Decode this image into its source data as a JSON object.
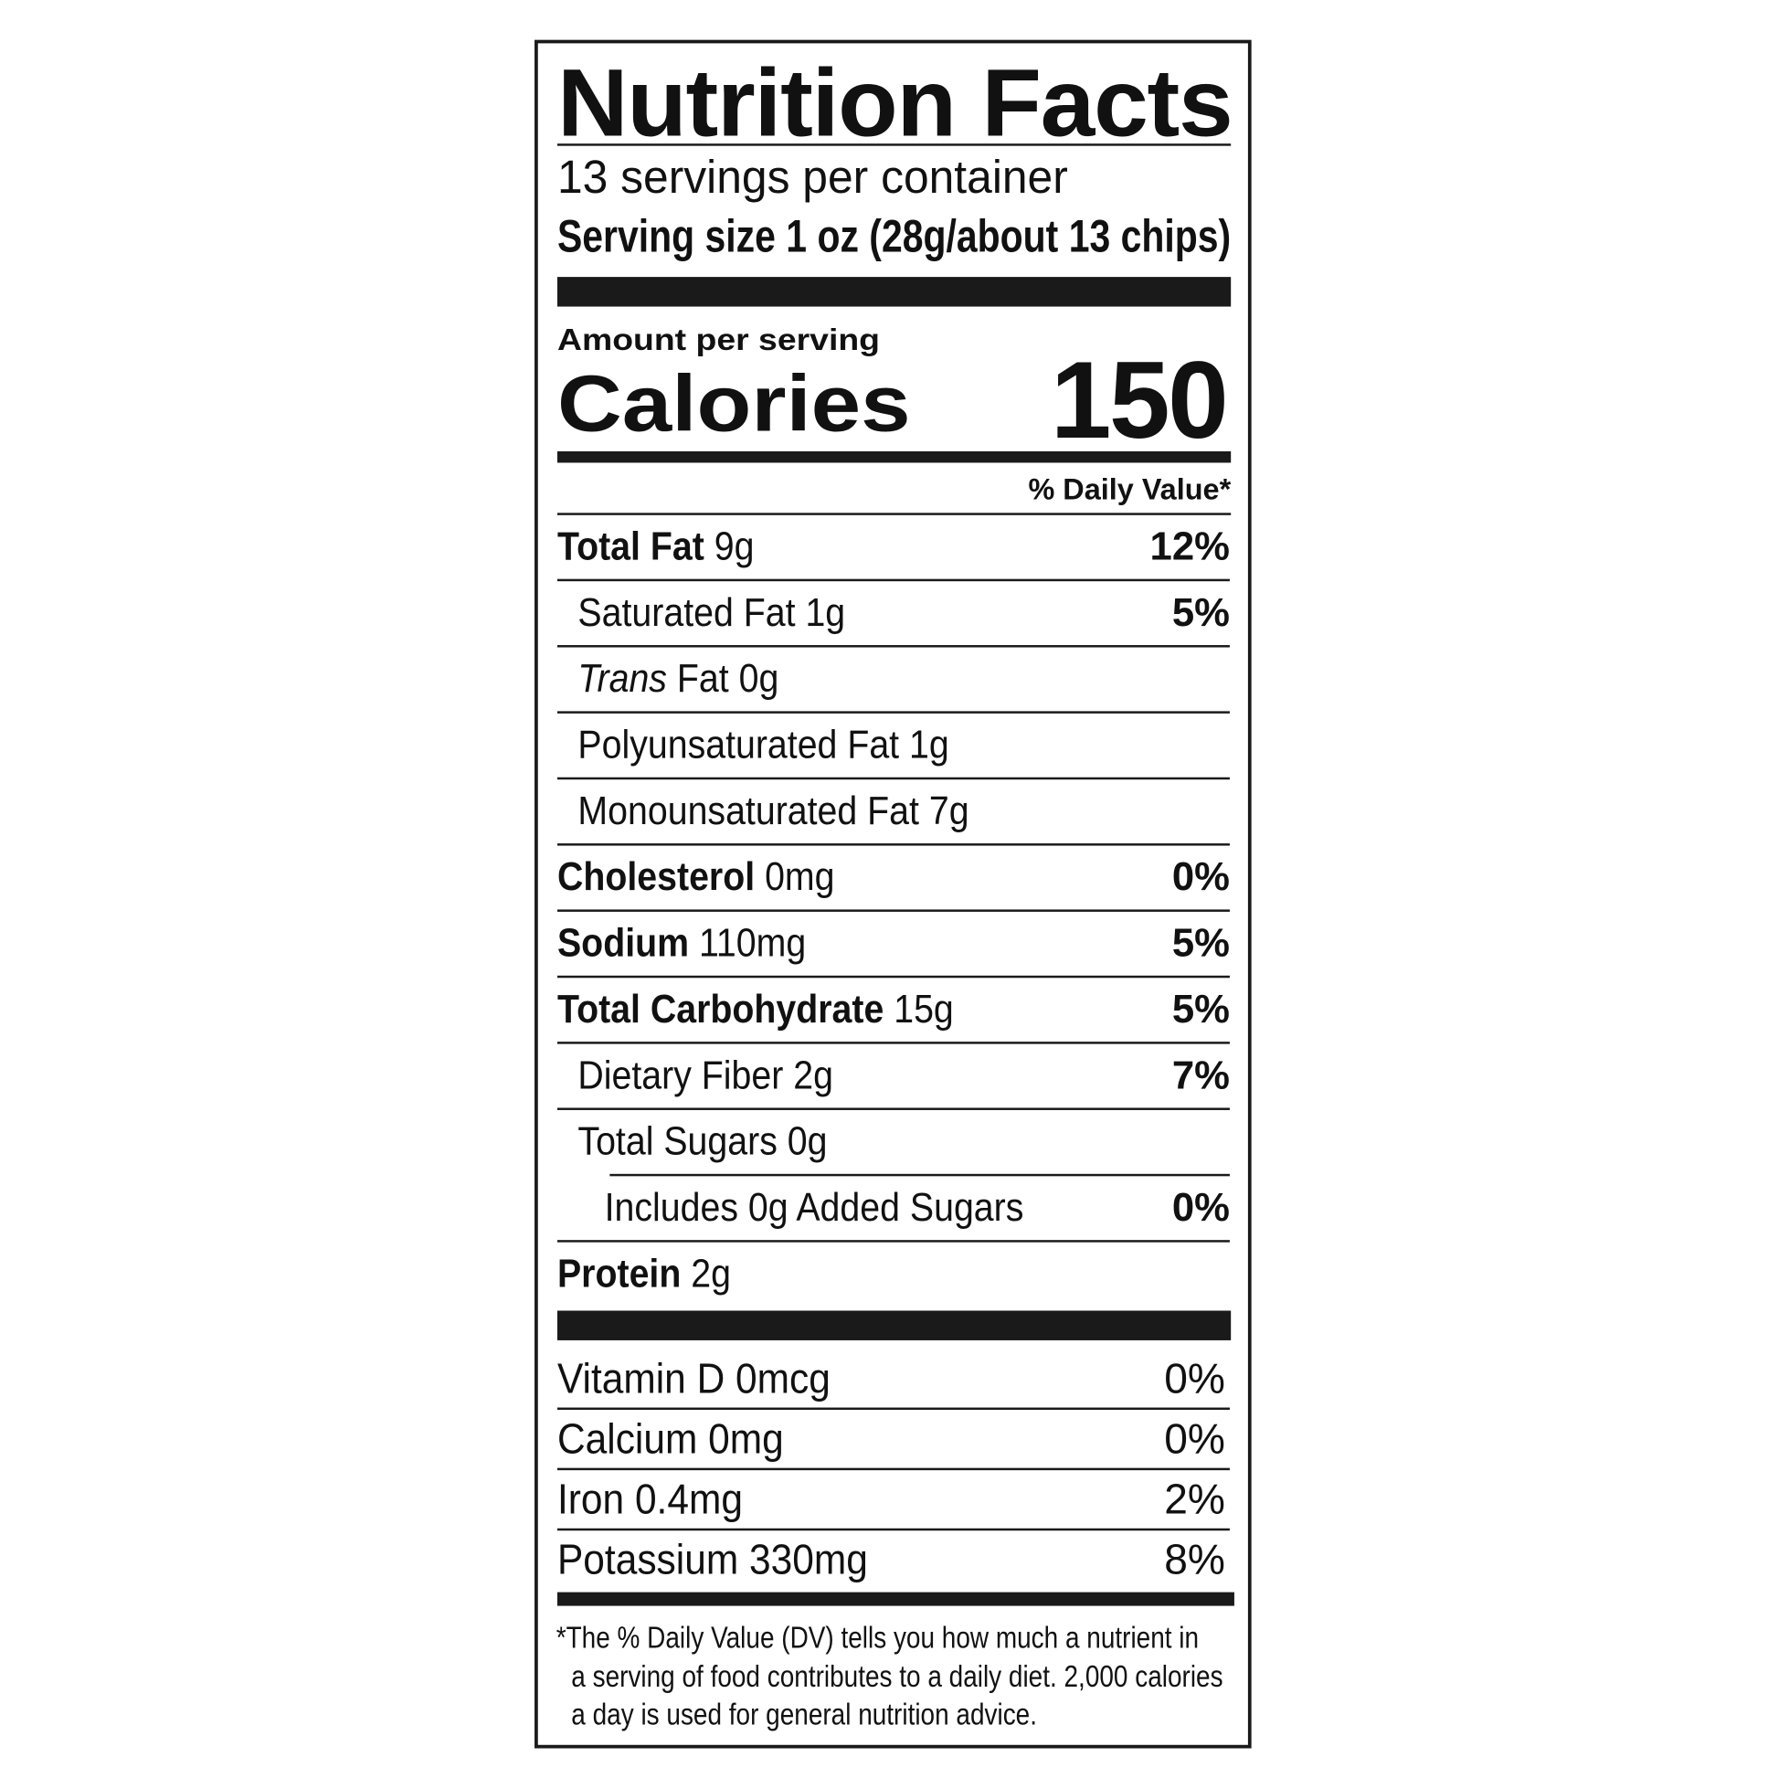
{
  "title": "Nutrition Facts",
  "servings_per_container": "13 servings per container",
  "serving_size": "Serving size 1 oz (28g/about 13 chips)",
  "amount_per_serving": "Amount per serving",
  "calories_label": "Calories",
  "calories_value": "150",
  "daily_value_header": "% Daily Value*",
  "nutrients": [
    {
      "name": "Total Fat",
      "amount": "9g",
      "dv": "12%",
      "bold": true
    },
    {
      "name": "Saturated Fat",
      "amount": "1g",
      "dv": "5%"
    },
    {
      "name_italic": "Trans",
      "name": "Fat",
      "amount": "0g",
      "dv": ""
    },
    {
      "name": "Polyunsaturated Fat",
      "amount": "1g",
      "dv": ""
    },
    {
      "name": "Monounsaturated Fat",
      "amount": "7g",
      "dv": ""
    },
    {
      "name": "Cholesterol",
      "amount": "0mg",
      "dv": "0%",
      "bold": true
    },
    {
      "name": "Sodium",
      "amount": "110mg",
      "dv": "5%",
      "bold": true
    },
    {
      "name": "Total Carbohydrate",
      "amount": "15g",
      "dv": "5%",
      "bold": true
    },
    {
      "name": "Dietary Fiber",
      "amount": "2g",
      "dv": "7%"
    },
    {
      "name": "Total Sugars",
      "amount": "0g",
      "dv": ""
    },
    {
      "name": "Includes 0g Added Sugars",
      "amount": "",
      "dv": "0%"
    },
    {
      "name": "Protein",
      "amount": "2g",
      "dv": "",
      "bold": true
    }
  ],
  "vitamins": [
    {
      "name": "Vitamin D 0mcg",
      "dv": "0%"
    },
    {
      "name": "Calcium 0mg",
      "dv": "0%"
    },
    {
      "name": "Iron 0.4mg",
      "dv": "2%"
    },
    {
      "name": "Potassium 330mg",
      "dv": "8%"
    }
  ],
  "footnote": [
    "*The % Daily Value (DV) tells you how much a nutrient in",
    "a serving of food contributes to a daily diet. 2,000 calories",
    "a day is used for general nutrition advice."
  ]
}
